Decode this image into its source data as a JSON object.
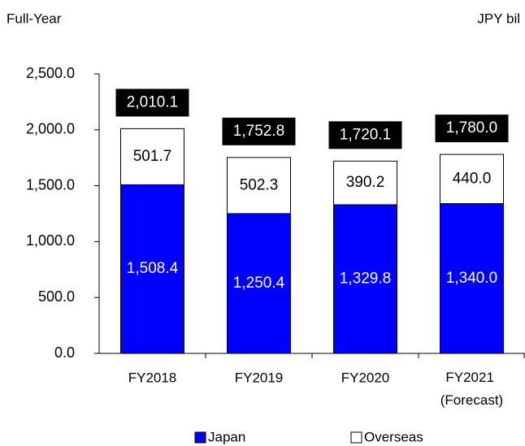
{
  "chart_data": {
    "type": "stacked_bar",
    "title": "Full-Year",
    "unit_label": "JPY bil",
    "categories": [
      "FY2018",
      "FY2019",
      "FY2020",
      "FY2021 (Forecast)"
    ],
    "series": [
      {
        "name": "Japan",
        "color": "#0000ff",
        "label_color": "#ffffff",
        "values": [
          1508.4,
          1250.4,
          1329.8,
          1340.0
        ],
        "value_labels": [
          "1,508.4",
          "1,250.4",
          "1,329.8",
          "1,340.0"
        ]
      },
      {
        "name": "Overseas",
        "color": "#ffffff",
        "label_color": "#000000",
        "values": [
          501.7,
          502.3,
          390.2,
          440.0
        ],
        "value_labels": [
          "501.7",
          "502.3",
          "390.2",
          "440.0"
        ]
      }
    ],
    "totals": [
      2010.1,
      1752.8,
      1720.1,
      1780.0
    ],
    "total_labels": [
      "2,010.1",
      "1,752.8",
      "1,720.1",
      "1,780.0"
    ],
    "ylim": [
      0,
      2500
    ],
    "yticks": [
      {
        "value": 0,
        "label": "0.0"
      },
      {
        "value": 500,
        "label": "500.0"
      },
      {
        "value": 1000,
        "label": "1,000.0"
      },
      {
        "value": 1500,
        "label": "1,500.0"
      },
      {
        "value": 2000,
        "label": "2,000.0"
      },
      {
        "value": 2500,
        "label": "2,500.0"
      }
    ],
    "grid": false,
    "legend": "bottom"
  }
}
